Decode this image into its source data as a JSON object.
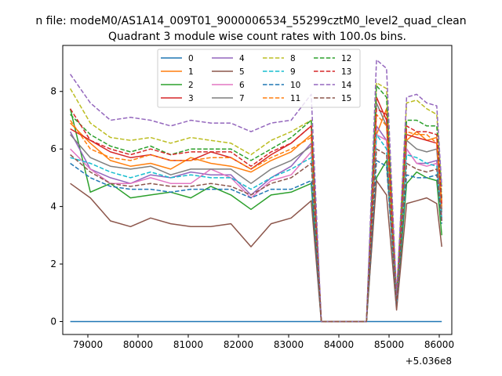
{
  "chart_data": {
    "type": "line",
    "suptitle": "n file: modeM0/AS1A14_009T01_9000006534_55299cztM0_level2_quad_clean",
    "title": "Quadrant 3 module wise count rates with 100.0s bins.",
    "xlabel": "",
    "ylabel": "",
    "x_offset_label": "+5.036e8",
    "xlim": [
      78500,
      86250
    ],
    "ylim": [
      -0.45,
      9.6
    ],
    "xticks": [
      79000,
      80000,
      81000,
      82000,
      83000,
      84000,
      85000,
      86000
    ],
    "yticks": [
      0,
      2,
      4,
      6,
      8
    ],
    "legend": {
      "location": "top-center",
      "columns": 4
    },
    "sample_x": [
      78650,
      79050,
      79450,
      79850,
      80250,
      80650,
      81050,
      81450,
      81850,
      82250,
      82650,
      83050,
      83450,
      83650,
      83850,
      84250,
      84550,
      84750,
      84950,
      85150,
      85350,
      85550,
      85750,
      85950,
      86050
    ],
    "series": [
      {
        "name": "0",
        "color": "#1f77b4",
        "dash": "solid",
        "values": [
          0,
          0,
          0,
          0,
          0,
          0,
          0,
          0,
          0,
          0,
          0,
          0,
          0,
          0,
          0,
          0,
          0,
          0,
          0,
          0,
          0,
          0,
          0,
          0,
          0
        ]
      },
      {
        "name": "1",
        "color": "#ff7f0e",
        "dash": "solid",
        "values": [
          6.9,
          6.2,
          5.6,
          5.4,
          5.5,
          5.3,
          5.7,
          5.5,
          5.4,
          5.2,
          5.6,
          5.9,
          6.5,
          0.0,
          0.0,
          0.0,
          0.0,
          6.5,
          7.4,
          0.9,
          6.3,
          6.6,
          6.3,
          6.4,
          4.2
        ]
      },
      {
        "name": "2",
        "color": "#2ca02c",
        "dash": "solid",
        "values": [
          7.4,
          4.5,
          4.8,
          4.3,
          4.4,
          4.5,
          4.3,
          4.7,
          4.4,
          3.9,
          4.4,
          4.5,
          4.8,
          0.0,
          0.0,
          0.0,
          0.0,
          5.0,
          5.6,
          0.6,
          4.8,
          5.2,
          5.0,
          4.9,
          3.0
        ]
      },
      {
        "name": "3",
        "color": "#d62728",
        "dash": "solid",
        "values": [
          6.7,
          6.3,
          5.9,
          5.7,
          5.8,
          5.6,
          5.6,
          5.9,
          5.7,
          5.3,
          5.8,
          6.2,
          6.8,
          0.0,
          0.0,
          0.0,
          0.0,
          7.8,
          7.0,
          0.7,
          6.5,
          6.4,
          6.3,
          6.2,
          3.9
        ]
      },
      {
        "name": "4",
        "color": "#9467bd",
        "dash": "solid",
        "values": [
          6.6,
          5.3,
          5.0,
          4.8,
          5.1,
          5.0,
          5.2,
          5.1,
          5.1,
          4.4,
          5.0,
          5.4,
          6.2,
          0.0,
          0.0,
          0.0,
          0.0,
          6.8,
          6.3,
          0.6,
          6.0,
          5.5,
          5.5,
          5.6,
          3.5
        ]
      },
      {
        "name": "5",
        "color": "#8c564b",
        "dash": "solid",
        "values": [
          4.8,
          4.3,
          3.5,
          3.3,
          3.6,
          3.4,
          3.3,
          3.3,
          3.4,
          2.6,
          3.4,
          3.6,
          4.2,
          0.0,
          0.0,
          0.0,
          0.0,
          4.9,
          4.4,
          0.4,
          4.1,
          4.2,
          4.3,
          4.1,
          2.6
        ]
      },
      {
        "name": "6",
        "color": "#e377c2",
        "dash": "solid",
        "values": [
          6.0,
          5.3,
          4.8,
          4.8,
          5.0,
          4.8,
          4.8,
          5.3,
          5.0,
          4.3,
          4.9,
          5.1,
          5.9,
          0.0,
          0.0,
          0.0,
          0.0,
          6.5,
          6.3,
          0.6,
          6.0,
          5.5,
          5.4,
          5.5,
          3.7
        ]
      },
      {
        "name": "7",
        "color": "#7f7f7f",
        "dash": "solid",
        "values": [
          6.5,
          5.7,
          5.4,
          5.3,
          5.4,
          5.1,
          5.3,
          5.3,
          5.3,
          4.8,
          5.3,
          5.6,
          6.1,
          0.0,
          0.0,
          0.0,
          0.0,
          7.6,
          6.8,
          0.7,
          6.3,
          6.0,
          5.9,
          6.0,
          3.8
        ]
      },
      {
        "name": "8",
        "color": "#bcbd22",
        "dash": "dashed",
        "values": [
          8.1,
          6.9,
          6.4,
          6.3,
          6.4,
          6.2,
          6.4,
          6.3,
          6.2,
          5.8,
          6.3,
          6.6,
          7.0,
          0.0,
          0.0,
          0.0,
          0.0,
          8.3,
          8.1,
          0.9,
          7.6,
          7.7,
          7.4,
          7.2,
          4.6
        ]
      },
      {
        "name": "9",
        "color": "#17becf",
        "dash": "dashed",
        "values": [
          5.7,
          5.5,
          5.2,
          5.0,
          5.2,
          5.0,
          5.1,
          5.0,
          5.0,
          4.6,
          5.0,
          5.3,
          5.7,
          0.0,
          0.0,
          0.0,
          0.0,
          6.5,
          6.0,
          0.6,
          5.8,
          5.7,
          5.5,
          5.4,
          3.6
        ]
      },
      {
        "name": "10",
        "color": "#1f77b4",
        "dash": "dashed",
        "values": [
          5.5,
          5.0,
          4.7,
          4.6,
          4.6,
          4.5,
          4.6,
          4.6,
          4.6,
          4.3,
          4.6,
          4.6,
          4.9,
          0.0,
          0.0,
          0.0,
          0.0,
          5.6,
          5.4,
          0.6,
          5.1,
          5.0,
          5.0,
          5.1,
          3.4
        ]
      },
      {
        "name": "11",
        "color": "#ff7f0e",
        "dash": "dashed",
        "values": [
          7.0,
          6.0,
          5.7,
          5.6,
          5.8,
          5.6,
          5.6,
          5.7,
          5.7,
          5.3,
          5.7,
          6.0,
          6.4,
          0.0,
          0.0,
          0.0,
          0.0,
          7.2,
          6.8,
          0.8,
          6.6,
          6.5,
          6.5,
          6.2,
          4.0
        ]
      },
      {
        "name": "12",
        "color": "#2ca02c",
        "dash": "dashed",
        "values": [
          7.2,
          6.5,
          6.1,
          5.9,
          6.1,
          5.8,
          6.0,
          6.0,
          6.0,
          5.6,
          6.0,
          6.4,
          7.0,
          0.0,
          0.0,
          0.0,
          0.0,
          8.2,
          7.8,
          0.8,
          7.0,
          7.0,
          6.8,
          6.8,
          4.3
        ]
      },
      {
        "name": "13",
        "color": "#d62728",
        "dash": "dashed",
        "values": [
          7.4,
          6.3,
          6.0,
          5.8,
          6.0,
          5.8,
          5.9,
          5.9,
          5.9,
          5.4,
          5.9,
          6.2,
          6.8,
          0.0,
          0.0,
          0.0,
          0.0,
          7.4,
          7.2,
          0.8,
          6.8,
          6.6,
          6.6,
          6.5,
          4.1
        ]
      },
      {
        "name": "14",
        "color": "#9467bd",
        "dash": "dashed",
        "values": [
          8.6,
          7.6,
          7.0,
          7.1,
          7.0,
          6.8,
          7.0,
          6.9,
          6.9,
          6.6,
          6.9,
          7.0,
          7.9,
          0.0,
          0.0,
          0.0,
          0.0,
          9.1,
          8.8,
          0.9,
          7.8,
          7.9,
          7.6,
          7.5,
          4.7
        ]
      },
      {
        "name": "15",
        "color": "#8c564b",
        "dash": "dashed",
        "values": [
          5.8,
          5.2,
          4.8,
          4.7,
          4.8,
          4.7,
          4.7,
          4.8,
          4.7,
          4.4,
          4.8,
          5.0,
          5.5,
          0.0,
          0.0,
          0.0,
          0.0,
          6.0,
          5.8,
          0.6,
          5.5,
          5.3,
          5.2,
          5.3,
          3.5
        ]
      }
    ]
  }
}
